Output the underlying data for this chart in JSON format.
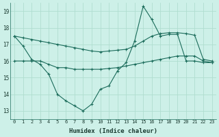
{
  "xlabel": "Humidex (Indice chaleur)",
  "background_color": "#cdf0e8",
  "grid_color": "#b0ddd0",
  "line_color": "#1a6b5a",
  "xlim": [
    -0.5,
    23.5
  ],
  "ylim": [
    12.5,
    19.5
  ],
  "yticks": [
    13,
    14,
    15,
    16,
    17,
    18,
    19
  ],
  "xticks": [
    0,
    1,
    2,
    3,
    4,
    5,
    6,
    7,
    8,
    9,
    10,
    11,
    12,
    13,
    14,
    15,
    16,
    17,
    18,
    19,
    20,
    21,
    22,
    23
  ],
  "series1_x": [
    0,
    1,
    2,
    3,
    4,
    5,
    6,
    7,
    8,
    9,
    10,
    11,
    12,
    13,
    14,
    15,
    16,
    17,
    18,
    19,
    20,
    21,
    22,
    23
  ],
  "series1_y": [
    17.5,
    16.9,
    16.1,
    15.8,
    15.2,
    14.0,
    13.6,
    13.3,
    13.0,
    13.4,
    14.3,
    14.5,
    15.4,
    15.9,
    17.2,
    19.3,
    18.5,
    17.5,
    17.6,
    17.6,
    16.0,
    16.0,
    15.9,
    15.9
  ],
  "series2_x": [
    0,
    1,
    2,
    3,
    4,
    5,
    6,
    7,
    8,
    9,
    10,
    11,
    12,
    13,
    14,
    15,
    16,
    17,
    18,
    19,
    20,
    21,
    22,
    23
  ],
  "series2_y": [
    16.0,
    16.0,
    16.0,
    16.0,
    15.8,
    15.6,
    15.6,
    15.5,
    15.5,
    15.5,
    15.5,
    15.55,
    15.6,
    15.7,
    15.8,
    15.9,
    16.0,
    16.1,
    16.2,
    16.3,
    16.3,
    16.3,
    16.0,
    15.9
  ],
  "series3_x": [
    0,
    1,
    2,
    3,
    4,
    5,
    6,
    7,
    8,
    9,
    10,
    11,
    12,
    13,
    14,
    15,
    16,
    17,
    18,
    19,
    20,
    21,
    22,
    23
  ],
  "series3_y": [
    17.5,
    17.4,
    17.3,
    17.2,
    17.1,
    17.0,
    16.9,
    16.8,
    16.7,
    16.6,
    16.55,
    16.6,
    16.65,
    16.7,
    16.9,
    17.2,
    17.5,
    17.65,
    17.7,
    17.7,
    17.65,
    17.55,
    16.1,
    16.0
  ]
}
